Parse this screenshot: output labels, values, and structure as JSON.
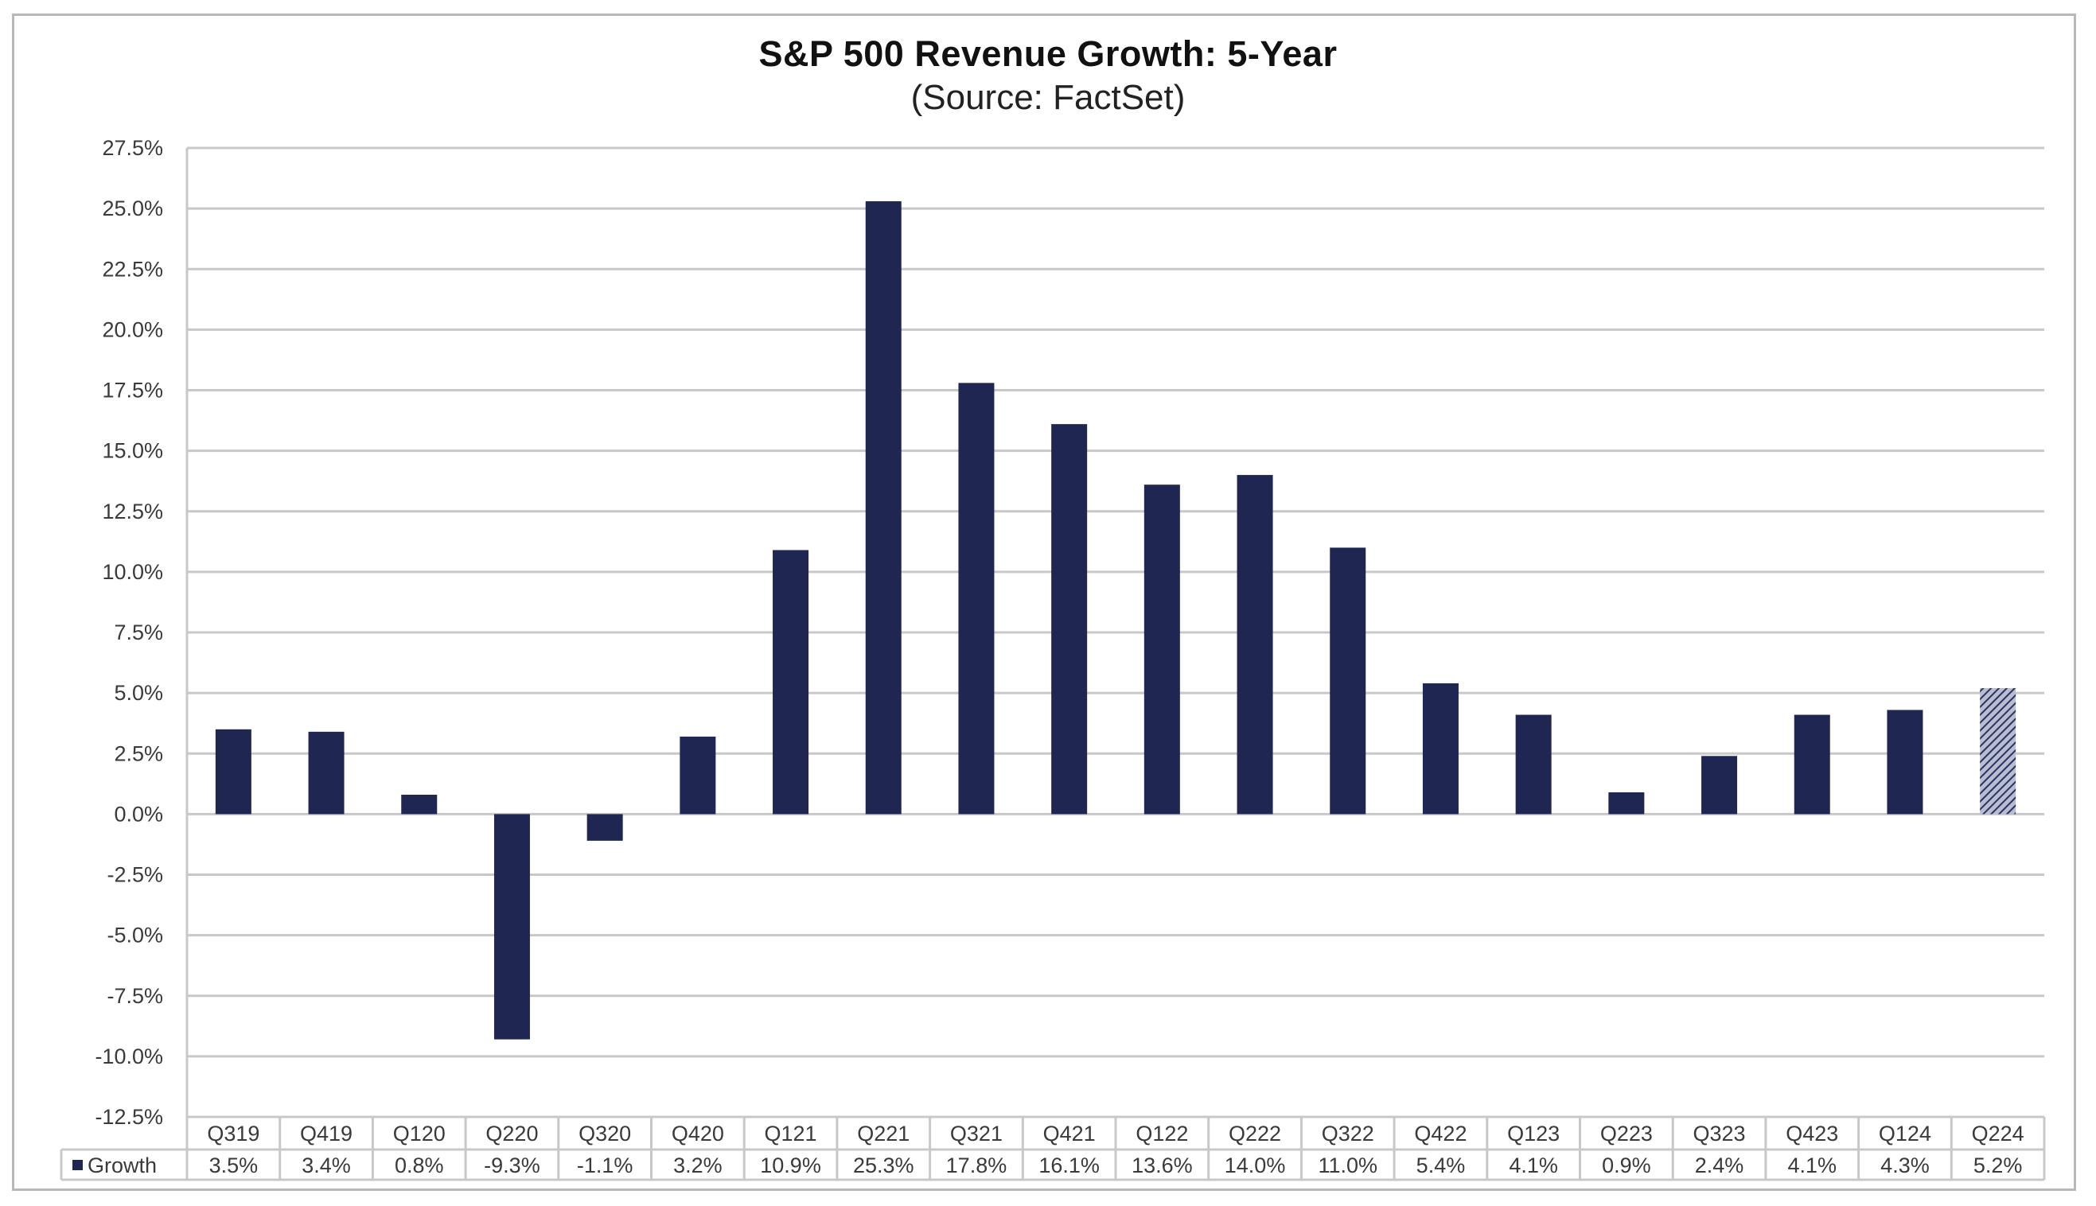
{
  "chart_data": {
    "type": "bar",
    "title": "S&P 500 Revenue Growth: 5-Year",
    "subtitle": "(Source: FactSet)",
    "xlabel": "",
    "ylabel": "",
    "ylim": [
      -12.5,
      27.5
    ],
    "ytick_step": 2.5,
    "yticks": [
      "27.5%",
      "25.0%",
      "22.5%",
      "20.0%",
      "17.5%",
      "15.0%",
      "12.5%",
      "10.0%",
      "7.5%",
      "5.0%",
      "2.5%",
      "0.0%",
      "-2.5%",
      "-5.0%",
      "-7.5%",
      "-10.0%",
      "-12.5%"
    ],
    "grid": true,
    "legend_position": "bottom-left (data table)",
    "categories": [
      "Q319",
      "Q419",
      "Q120",
      "Q220",
      "Q320",
      "Q420",
      "Q121",
      "Q221",
      "Q321",
      "Q421",
      "Q122",
      "Q222",
      "Q322",
      "Q422",
      "Q123",
      "Q223",
      "Q323",
      "Q423",
      "Q124",
      "Q224"
    ],
    "series": [
      {
        "name": "Growth",
        "color": "#1f2652",
        "values": [
          3.5,
          3.4,
          0.8,
          -9.3,
          -1.1,
          3.2,
          10.9,
          25.3,
          17.8,
          16.1,
          13.6,
          14.0,
          11.0,
          5.4,
          4.1,
          0.9,
          2.4,
          4.1,
          4.3,
          5.2
        ],
        "value_labels": [
          "3.5%",
          "3.4%",
          "0.8%",
          "-9.3%",
          "-1.1%",
          "3.2%",
          "10.9%",
          "25.3%",
          "17.8%",
          "16.1%",
          "13.6%",
          "14.0%",
          "11.0%",
          "5.4%",
          "4.1%",
          "0.9%",
          "2.4%",
          "4.1%",
          "4.3%",
          "5.2%"
        ],
        "estimated": [
          false,
          false,
          false,
          false,
          false,
          false,
          false,
          false,
          false,
          false,
          false,
          false,
          false,
          false,
          false,
          false,
          false,
          false,
          false,
          true
        ]
      }
    ],
    "data_table": true
  },
  "colors": {
    "bar": "#1f2652",
    "estimate_hatch": "#1f2652",
    "grid": "#c8c8c8",
    "text": "#3a3a3a"
  }
}
